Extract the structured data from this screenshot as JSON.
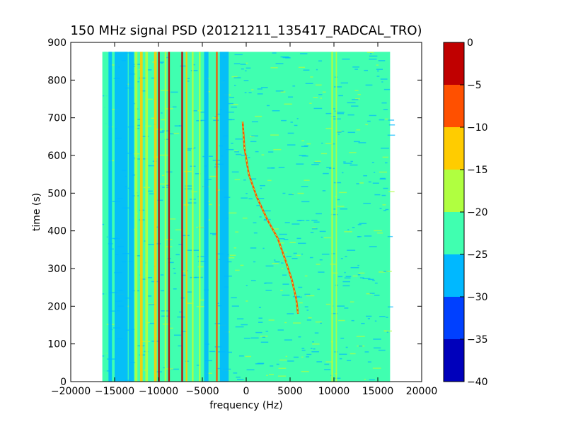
{
  "chart_data": {
    "type": "heatmap",
    "title": "150 MHz signal PSD (20121211_135417_RADCAL_TRO)",
    "xlabel": "frequency (Hz)",
    "ylabel": "time (s)",
    "xlim": [
      -20000,
      20000
    ],
    "ylim": [
      0,
      900
    ],
    "x_ticks": [
      -20000,
      -15000,
      -10000,
      -5000,
      0,
      5000,
      10000,
      15000,
      20000
    ],
    "y_ticks": [
      0,
      100,
      200,
      300,
      400,
      500,
      600,
      700,
      800,
      900
    ],
    "data_extent": {
      "x": [
        -16400,
        16400
      ],
      "y": [
        0,
        875
      ]
    },
    "background_level": -22,
    "colorbar": {
      "levels": [
        -40,
        -35,
        -30,
        -25,
        -20,
        -15,
        -10,
        -5,
        0
      ],
      "tick_labels": [
        "−40",
        "−35",
        "−30",
        "−25",
        "−20",
        "−15",
        "−10",
        "−5",
        "0"
      ],
      "colors": [
        "#0000bb",
        "#0040ff",
        "#00b8ff",
        "#40ffb0",
        "#b0ff40",
        "#ffcc00",
        "#ff5000",
        "#c00000"
      ]
    },
    "frequency_bands": [
      {
        "x0": -16200,
        "x1": -15900,
        "level": -22
      },
      {
        "x0": -15700,
        "x1": -15300,
        "level": -27
      },
      {
        "x0": -15000,
        "x1": -13500,
        "level": -28
      },
      {
        "x0": -13400,
        "x1": -12800,
        "level": -26
      },
      {
        "x0": -12700,
        "x1": -12400,
        "level": -17
      },
      {
        "x0": -12100,
        "x1": -11800,
        "level": -12
      },
      {
        "x0": -11500,
        "x1": -11200,
        "level": -16
      },
      {
        "x0": -10500,
        "x1": -10200,
        "level": -12
      },
      {
        "x0": -10050,
        "x1": -9850,
        "level": -2
      },
      {
        "x0": -9300,
        "x1": -9100,
        "level": -16
      },
      {
        "x0": -8900,
        "x1": -8700,
        "level": -2
      },
      {
        "x0": -7400,
        "x1": -7200,
        "level": -2
      },
      {
        "x0": -6900,
        "x1": -6700,
        "level": -12
      },
      {
        "x0": -6200,
        "x1": -6000,
        "level": -16
      },
      {
        "x0": -5400,
        "x1": -5200,
        "level": -16
      },
      {
        "x0": -4800,
        "x1": -4300,
        "level": -27
      },
      {
        "x0": -3450,
        "x1": -3250,
        "level": -8
      },
      {
        "x0": -3000,
        "x1": -2000,
        "level": -27
      },
      {
        "x0": 9700,
        "x1": 9900,
        "level": -16
      },
      {
        "x0": 10200,
        "x1": 10350,
        "level": -17
      }
    ],
    "drifting_signal": {
      "level": -10,
      "points": [
        [
          -400,
          690
        ],
        [
          -200,
          620
        ],
        [
          300,
          550
        ],
        [
          1200,
          490
        ],
        [
          2400,
          430
        ],
        [
          3600,
          380
        ],
        [
          4500,
          320
        ],
        [
          5200,
          270
        ],
        [
          5700,
          220
        ],
        [
          5900,
          180
        ]
      ]
    }
  }
}
